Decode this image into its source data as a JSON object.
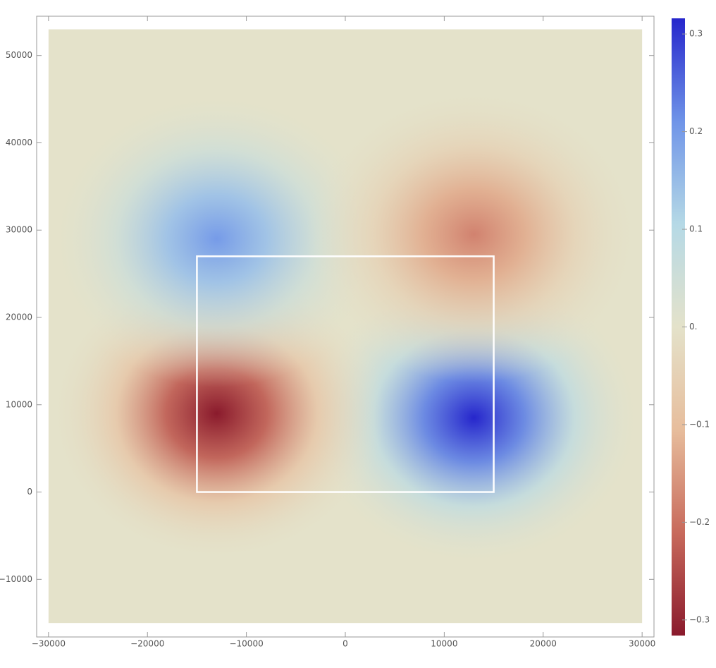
{
  "chart_data": {
    "type": "density",
    "xlim": [
      -31200,
      31200
    ],
    "ylim": [
      -16600,
      54500
    ],
    "xticks": [
      {
        "value": -30000,
        "label": "−30000"
      },
      {
        "value": -20000,
        "label": "−20000"
      },
      {
        "value": -10000,
        "label": "−10000"
      },
      0,
      10000,
      20000,
      30000
    ],
    "yticks": [
      {
        "value": -10000,
        "label": "−10000"
      },
      0,
      10000,
      20000,
      30000,
      40000,
      50000
    ],
    "xrange": [
      -30000,
      30000
    ],
    "yrange": [
      -15000,
      53000
    ],
    "x": [
      13000,
      -13000,
      -13000,
      13000
    ],
    "y": [
      8500,
      9000,
      29000,
      29500
    ],
    "values": [
      0.32,
      -0.32,
      0.2,
      -0.18
    ],
    "rectangle": {
      "x": [
        -15000,
        15000
      ],
      "y": [
        0,
        27000
      ],
      "color": "#ffffff"
    },
    "zlim": [
      -0.316,
      0.316
    ],
    "zticks": [
      {
        "value": -0.3,
        "label": "−0.3"
      },
      {
        "value": -0.2,
        "label": "−0.2"
      },
      {
        "value": -0.1,
        "label": "−0.1"
      },
      {
        "value": 0,
        "label": "0."
      },
      0.1,
      0.2,
      0.3
    ],
    "colors": [
      "#8a1a2c",
      "#c86a5c",
      "#e7bd9c",
      "#e4e2ca",
      "#b5d9e6",
      "#6f94e8",
      "#2626cc"
    ]
  }
}
